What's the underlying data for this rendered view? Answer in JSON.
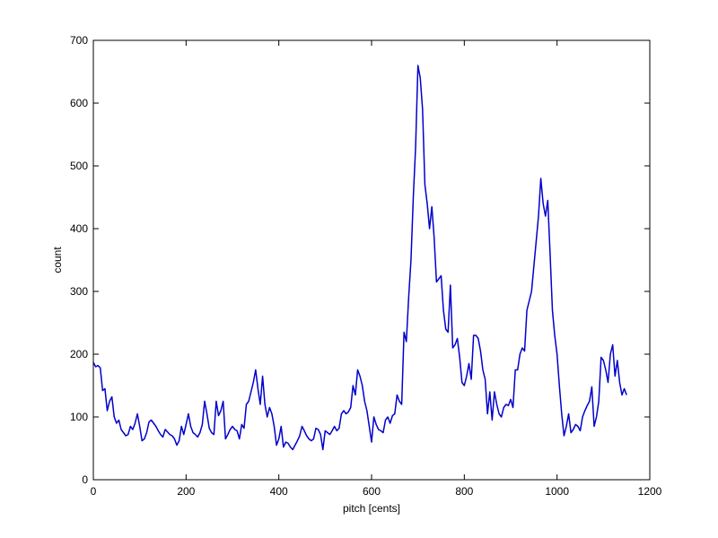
{
  "chart_data": {
    "type": "line",
    "title": "",
    "xlabel": "pitch [cents]",
    "ylabel": "count",
    "xlim": [
      0,
      1200
    ],
    "ylim": [
      0,
      700
    ],
    "xticks": [
      0,
      200,
      400,
      600,
      800,
      1000,
      1200
    ],
    "yticks": [
      0,
      100,
      200,
      300,
      400,
      500,
      600,
      700
    ],
    "grid": false,
    "legend": "none",
    "line_color": "#0000cc",
    "series": [
      {
        "values": [
          [
            0,
            187
          ],
          [
            5,
            180
          ],
          [
            10,
            182
          ],
          [
            15,
            178
          ],
          [
            20,
            142
          ],
          [
            25,
            145
          ],
          [
            30,
            110
          ],
          [
            35,
            125
          ],
          [
            40,
            132
          ],
          [
            45,
            100
          ],
          [
            50,
            90
          ],
          [
            55,
            95
          ],
          [
            60,
            80
          ],
          [
            65,
            75
          ],
          [
            70,
            70
          ],
          [
            75,
            72
          ],
          [
            80,
            85
          ],
          [
            85,
            80
          ],
          [
            90,
            90
          ],
          [
            95,
            105
          ],
          [
            100,
            85
          ],
          [
            105,
            62
          ],
          [
            110,
            65
          ],
          [
            115,
            75
          ],
          [
            120,
            92
          ],
          [
            125,
            95
          ],
          [
            130,
            90
          ],
          [
            135,
            85
          ],
          [
            140,
            78
          ],
          [
            145,
            72
          ],
          [
            150,
            68
          ],
          [
            155,
            80
          ],
          [
            160,
            76
          ],
          [
            165,
            72
          ],
          [
            170,
            70
          ],
          [
            175,
            65
          ],
          [
            180,
            55
          ],
          [
            185,
            62
          ],
          [
            190,
            85
          ],
          [
            195,
            72
          ],
          [
            200,
            88
          ],
          [
            205,
            105
          ],
          [
            210,
            85
          ],
          [
            215,
            75
          ],
          [
            220,
            72
          ],
          [
            225,
            68
          ],
          [
            230,
            75
          ],
          [
            235,
            88
          ],
          [
            240,
            125
          ],
          [
            245,
            105
          ],
          [
            250,
            82
          ],
          [
            255,
            75
          ],
          [
            260,
            72
          ],
          [
            265,
            125
          ],
          [
            270,
            102
          ],
          [
            275,
            110
          ],
          [
            280,
            125
          ],
          [
            285,
            65
          ],
          [
            290,
            72
          ],
          [
            295,
            80
          ],
          [
            300,
            85
          ],
          [
            305,
            80
          ],
          [
            310,
            78
          ],
          [
            315,
            65
          ],
          [
            320,
            88
          ],
          [
            325,
            82
          ],
          [
            330,
            120
          ],
          [
            335,
            125
          ],
          [
            340,
            140
          ],
          [
            345,
            155
          ],
          [
            350,
            175
          ],
          [
            355,
            145
          ],
          [
            360,
            120
          ],
          [
            365,
            165
          ],
          [
            370,
            120
          ],
          [
            375,
            100
          ],
          [
            380,
            115
          ],
          [
            385,
            105
          ],
          [
            390,
            85
          ],
          [
            395,
            55
          ],
          [
            400,
            65
          ],
          [
            405,
            85
          ],
          [
            410,
            52
          ],
          [
            415,
            60
          ],
          [
            420,
            58
          ],
          [
            425,
            52
          ],
          [
            430,
            48
          ],
          [
            435,
            55
          ],
          [
            440,
            62
          ],
          [
            445,
            70
          ],
          [
            450,
            85
          ],
          [
            455,
            78
          ],
          [
            460,
            70
          ],
          [
            465,
            65
          ],
          [
            470,
            62
          ],
          [
            475,
            65
          ],
          [
            480,
            82
          ],
          [
            485,
            80
          ],
          [
            490,
            72
          ],
          [
            495,
            48
          ],
          [
            500,
            78
          ],
          [
            505,
            75
          ],
          [
            510,
            72
          ],
          [
            515,
            78
          ],
          [
            520,
            85
          ],
          [
            525,
            78
          ],
          [
            530,
            82
          ],
          [
            535,
            105
          ],
          [
            540,
            110
          ],
          [
            545,
            105
          ],
          [
            550,
            108
          ],
          [
            555,
            115
          ],
          [
            560,
            150
          ],
          [
            565,
            135
          ],
          [
            570,
            175
          ],
          [
            575,
            165
          ],
          [
            580,
            150
          ],
          [
            585,
            125
          ],
          [
            590,
            110
          ],
          [
            595,
            85
          ],
          [
            600,
            60
          ],
          [
            605,
            100
          ],
          [
            610,
            88
          ],
          [
            615,
            80
          ],
          [
            620,
            78
          ],
          [
            625,
            75
          ],
          [
            630,
            95
          ],
          [
            635,
            100
          ],
          [
            640,
            90
          ],
          [
            645,
            102
          ],
          [
            650,
            105
          ],
          [
            655,
            135
          ],
          [
            660,
            125
          ],
          [
            665,
            120
          ],
          [
            670,
            235
          ],
          [
            675,
            220
          ],
          [
            680,
            290
          ],
          [
            685,
            350
          ],
          [
            690,
            450
          ],
          [
            695,
            530
          ],
          [
            700,
            660
          ],
          [
            705,
            640
          ],
          [
            710,
            590
          ],
          [
            715,
            470
          ],
          [
            720,
            440
          ],
          [
            725,
            400
          ],
          [
            730,
            435
          ],
          [
            735,
            385
          ],
          [
            740,
            315
          ],
          [
            745,
            320
          ],
          [
            750,
            325
          ],
          [
            755,
            270
          ],
          [
            760,
            240
          ],
          [
            765,
            235
          ],
          [
            770,
            310
          ],
          [
            775,
            210
          ],
          [
            780,
            215
          ],
          [
            785,
            225
          ],
          [
            790,
            195
          ],
          [
            795,
            155
          ],
          [
            800,
            150
          ],
          [
            805,
            165
          ],
          [
            810,
            185
          ],
          [
            815,
            160
          ],
          [
            820,
            230
          ],
          [
            825,
            230
          ],
          [
            830,
            225
          ],
          [
            835,
            205
          ],
          [
            840,
            175
          ],
          [
            845,
            160
          ],
          [
            850,
            105
          ],
          [
            855,
            140
          ],
          [
            860,
            95
          ],
          [
            865,
            140
          ],
          [
            870,
            120
          ],
          [
            875,
            105
          ],
          [
            880,
            100
          ],
          [
            885,
            115
          ],
          [
            890,
            120
          ],
          [
            895,
            118
          ],
          [
            900,
            128
          ],
          [
            905,
            115
          ],
          [
            910,
            175
          ],
          [
            915,
            175
          ],
          [
            920,
            200
          ],
          [
            925,
            210
          ],
          [
            930,
            205
          ],
          [
            935,
            270
          ],
          [
            940,
            285
          ],
          [
            945,
            300
          ],
          [
            950,
            340
          ],
          [
            955,
            380
          ],
          [
            960,
            420
          ],
          [
            965,
            480
          ],
          [
            970,
            440
          ],
          [
            975,
            420
          ],
          [
            980,
            445
          ],
          [
            985,
            360
          ],
          [
            990,
            270
          ],
          [
            995,
            230
          ],
          [
            1000,
            200
          ],
          [
            1005,
            150
          ],
          [
            1010,
            105
          ],
          [
            1015,
            70
          ],
          [
            1020,
            85
          ],
          [
            1025,
            105
          ],
          [
            1030,
            75
          ],
          [
            1035,
            80
          ],
          [
            1040,
            88
          ],
          [
            1045,
            85
          ],
          [
            1050,
            78
          ],
          [
            1055,
            100
          ],
          [
            1060,
            110
          ],
          [
            1065,
            118
          ],
          [
            1070,
            125
          ],
          [
            1075,
            148
          ],
          [
            1080,
            85
          ],
          [
            1085,
            100
          ],
          [
            1090,
            125
          ],
          [
            1095,
            195
          ],
          [
            1100,
            190
          ],
          [
            1105,
            175
          ],
          [
            1110,
            155
          ],
          [
            1115,
            200
          ],
          [
            1120,
            215
          ],
          [
            1125,
            165
          ],
          [
            1130,
            190
          ],
          [
            1135,
            155
          ],
          [
            1140,
            135
          ],
          [
            1145,
            145
          ],
          [
            1150,
            135
          ]
        ]
      }
    ]
  }
}
